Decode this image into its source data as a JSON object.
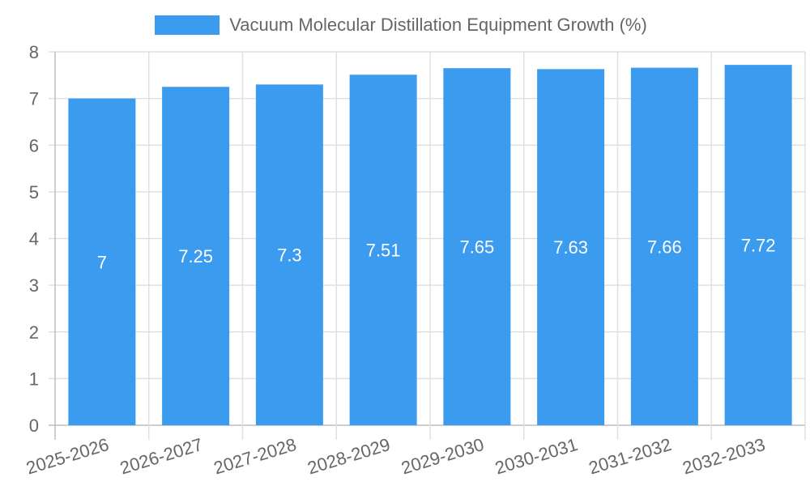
{
  "chart_data": {
    "type": "bar",
    "title": "",
    "legend": [
      "Vacuum Molecular Distillation Equipment Growth (%)"
    ],
    "legend_position": "top",
    "categories": [
      "2025-2026",
      "2026-2027",
      "2027-2028",
      "2028-2029",
      "2029-2030",
      "2030-2031",
      "2031-2032",
      "2032-2033"
    ],
    "series": [
      {
        "name": "Vacuum Molecular Distillation Equipment Growth (%)",
        "values": [
          7,
          7.25,
          7.3,
          7.51,
          7.65,
          7.63,
          7.66,
          7.72
        ],
        "color": "#3a9bef"
      }
    ],
    "xlabel": "",
    "ylabel": "",
    "ylim": [
      0,
      8
    ],
    "yticks": [
      0,
      1,
      2,
      3,
      4,
      5,
      6,
      7,
      8
    ],
    "grid": true,
    "data_labels": true
  },
  "legend": {
    "label": "Vacuum Molecular Distillation Equipment Growth (%)",
    "color": "#3a9bef"
  }
}
